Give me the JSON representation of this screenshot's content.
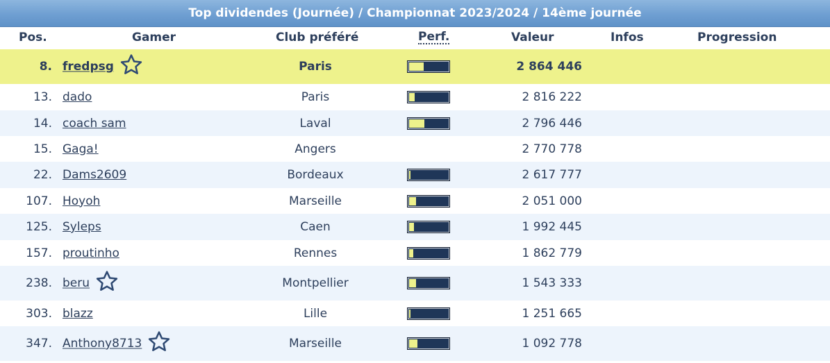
{
  "title": "Top dividendes (Journée) / Championnat 2023/2024 / 14ème journée",
  "columns": {
    "pos": "Pos.",
    "gamer": "Gamer",
    "club": "Club préféré",
    "perf": "Perf.",
    "value": "Valeur",
    "infos": "Infos",
    "progress": "Progression"
  },
  "colors": {
    "header_blue": "#6f9fd2",
    "highlight": "#eef28c",
    "alt_row": "#edf4fc",
    "text": "#2d3f5c",
    "bar": "#1f3658"
  },
  "rows": [
    {
      "pos": "8.",
      "name": "fredpsg",
      "club": "Paris",
      "value": "2 864 446",
      "perf": 0.38,
      "star": true,
      "highlight": true
    },
    {
      "pos": "13.",
      "name": "dado",
      "club": "Paris",
      "value": "2 816 222",
      "perf": 0.15,
      "star": false
    },
    {
      "pos": "14.",
      "name": "coach sam",
      "club": "Laval",
      "value": "2 796 446",
      "perf": 0.4,
      "star": false
    },
    {
      "pos": "15.",
      "name": "Gaga!",
      "club": "Angers",
      "value": "2 770 778",
      "perf": null,
      "star": false
    },
    {
      "pos": "22.",
      "name": "Dams2609",
      "club": "Bordeaux",
      "value": "2 617 777",
      "perf": 0.03,
      "star": false
    },
    {
      "pos": "107.",
      "name": "Hoyoh",
      "club": "Marseille",
      "value": "2 051 000",
      "perf": 0.18,
      "star": false
    },
    {
      "pos": "125.",
      "name": "Syleps",
      "club": "Caen",
      "value": "1 992 445",
      "perf": 0.13,
      "star": false
    },
    {
      "pos": "157.",
      "name": "proutinho",
      "club": "Rennes",
      "value": "1 862 779",
      "perf": 0.1,
      "star": false
    },
    {
      "pos": "238.",
      "name": "beru",
      "club": "Montpellier",
      "value": "1 543 333",
      "perf": 0.18,
      "star": true
    },
    {
      "pos": "303.",
      "name": "blazz",
      "club": "Lille",
      "value": "1 251 665",
      "perf": 0.03,
      "star": false
    },
    {
      "pos": "347.",
      "name": "Anthony8713",
      "club": "Marseille",
      "value": "1 092 778",
      "perf": 0.22,
      "star": true
    }
  ]
}
